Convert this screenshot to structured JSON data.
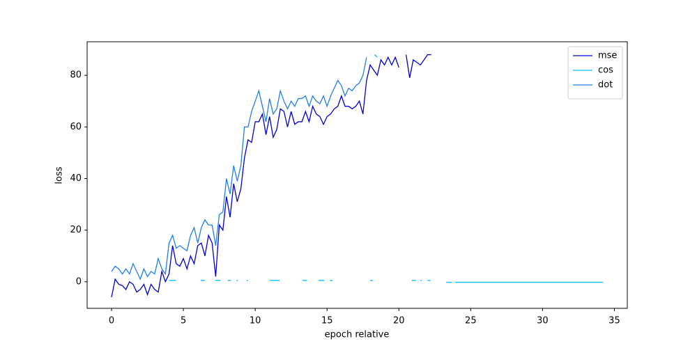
{
  "chart_data": {
    "type": "line",
    "xlabel": "epoch relative",
    "ylabel": "loss",
    "xlim": [
      -1.7,
      35.9
    ],
    "ylim": [
      -10.3,
      93
    ],
    "xticks": [
      0,
      5,
      10,
      15,
      20,
      25,
      30,
      35
    ],
    "yticks": [
      0,
      20,
      40,
      60,
      80
    ],
    "legend": "upper right",
    "series": [
      {
        "name": "mse",
        "color": "#0000cd",
        "x": [
          0,
          0.25,
          0.5,
          0.75,
          1,
          1.25,
          1.5,
          1.75,
          2,
          2.25,
          2.5,
          2.75,
          3,
          3.25,
          3.5,
          3.75,
          4,
          4.25,
          4.5,
          4.75,
          5,
          5.25,
          5.5,
          5.75,
          6,
          6.25,
          6.5,
          6.75,
          7,
          7.25,
          7.5,
          7.75,
          8,
          8.25,
          8.5,
          8.75,
          9,
          9.25,
          9.5,
          9.75,
          10,
          10.25,
          10.5,
          10.75,
          11,
          11.25,
          11.5,
          11.75,
          12,
          12.25,
          12.5,
          12.75,
          13,
          13.25,
          13.5,
          13.75,
          14,
          14.25,
          14.5,
          14.75,
          15,
          15.25,
          15.5,
          15.75,
          16,
          16.25,
          16.5,
          16.75,
          17,
          17.25,
          17.5,
          17.75,
          18,
          18.25,
          18.5,
          18.75,
          19,
          19.25,
          19.5,
          19.75,
          20,
          20.25,
          20.5,
          20.75,
          21,
          21.25,
          21.5,
          21.75,
          22,
          22.25
        ],
        "values": [
          -6,
          1,
          -1,
          -1.5,
          -3,
          0,
          -1,
          -4,
          -3,
          -1,
          -5,
          -1,
          -3,
          -4,
          4,
          0,
          3,
          14,
          7,
          6,
          9,
          5,
          10,
          7,
          14,
          15,
          10,
          18,
          15,
          2,
          22,
          20,
          33,
          25,
          38,
          31,
          36,
          48,
          55,
          54,
          62,
          62,
          65,
          57,
          64,
          56,
          59,
          67,
          66,
          60,
          66,
          61,
          62,
          62,
          66,
          62,
          68,
          65,
          64,
          61,
          64,
          65,
          67,
          68,
          72,
          68,
          68,
          67,
          68,
          70,
          65,
          78,
          84,
          82,
          80,
          86,
          84,
          87,
          84,
          87,
          83,
          null,
          88,
          79,
          86,
          85,
          84,
          86,
          88,
          88
        ]
      },
      {
        "name": "cos",
        "color": "#00bfff",
        "x": [
          4,
          4.5,
          4.6,
          6.2,
          6.5,
          6.6,
          7.2,
          7.6,
          7.7,
          8.1,
          8.3,
          8.4,
          8.7,
          8.8,
          9,
          9.4,
          9.5,
          10,
          11,
          11.7,
          12,
          13.3,
          13.6,
          14,
          14.4,
          14.8,
          15,
          15.2,
          15.4,
          16,
          18,
          18.2,
          18.25,
          18.3,
          18.5,
          19,
          20.9,
          21.2,
          21.3,
          21.5,
          21.6,
          21.8,
          22,
          22.2,
          22.6,
          23.3,
          23.7,
          23.8,
          23.9,
          34.2
        ],
        "values": [
          0.5,
          0.5,
          null,
          0.5,
          0.5,
          null,
          0.5,
          0.5,
          null,
          0.5,
          0.5,
          null,
          0.5,
          0.5,
          null,
          0.5,
          0.5,
          null,
          0.5,
          0.5,
          null,
          0.5,
          0.5,
          null,
          0.5,
          0.5,
          null,
          0.5,
          0.5,
          null,
          0.5,
          0.5,
          null,
          88,
          87,
          null,
          0.5,
          0.5,
          null,
          0.5,
          0.5,
          null,
          0.5,
          0.5,
          null,
          -0.2,
          -0.2,
          null,
          -0.2,
          -0.2
        ]
      },
      {
        "name": "dot",
        "color": "#1e7fe8",
        "x": [
          0,
          0.25,
          0.5,
          0.75,
          1,
          1.25,
          1.5,
          1.75,
          2,
          2.25,
          2.5,
          2.75,
          3,
          3.25,
          3.5,
          3.75,
          4,
          4.25,
          4.5,
          4.75,
          5,
          5.25,
          5.5,
          5.75,
          6,
          6.25,
          6.5,
          6.75,
          7,
          7.25,
          7.5,
          7.75,
          8,
          8.25,
          8.5,
          8.75,
          9,
          9.25,
          9.5,
          9.75,
          10,
          10.25,
          10.5,
          10.75,
          11,
          11.25,
          11.5,
          11.75,
          12,
          12.25,
          12.5,
          12.75,
          13,
          13.25,
          13.5,
          13.75,
          14,
          14.25,
          14.5,
          14.75,
          15,
          15.25,
          15.5,
          15.75,
          16,
          16.25,
          16.5,
          16.75,
          17,
          17.25,
          17.5,
          17.75
        ],
        "values": [
          4,
          6,
          5,
          3,
          5,
          3,
          7,
          4,
          1,
          5,
          2,
          4,
          3,
          9,
          5,
          3,
          15,
          18,
          13,
          14,
          13,
          12,
          18,
          21,
          15,
          21,
          24,
          22,
          22,
          14,
          26,
          27,
          40,
          34,
          45,
          39,
          45,
          60,
          60,
          66,
          70,
          74,
          68,
          62,
          71,
          65,
          67,
          74,
          70,
          67,
          70,
          68,
          71,
          71,
          72,
          68,
          72,
          70,
          69,
          72,
          68,
          72,
          75,
          78,
          76,
          72,
          75,
          74,
          76,
          77,
          80,
          87
        ]
      }
    ]
  }
}
